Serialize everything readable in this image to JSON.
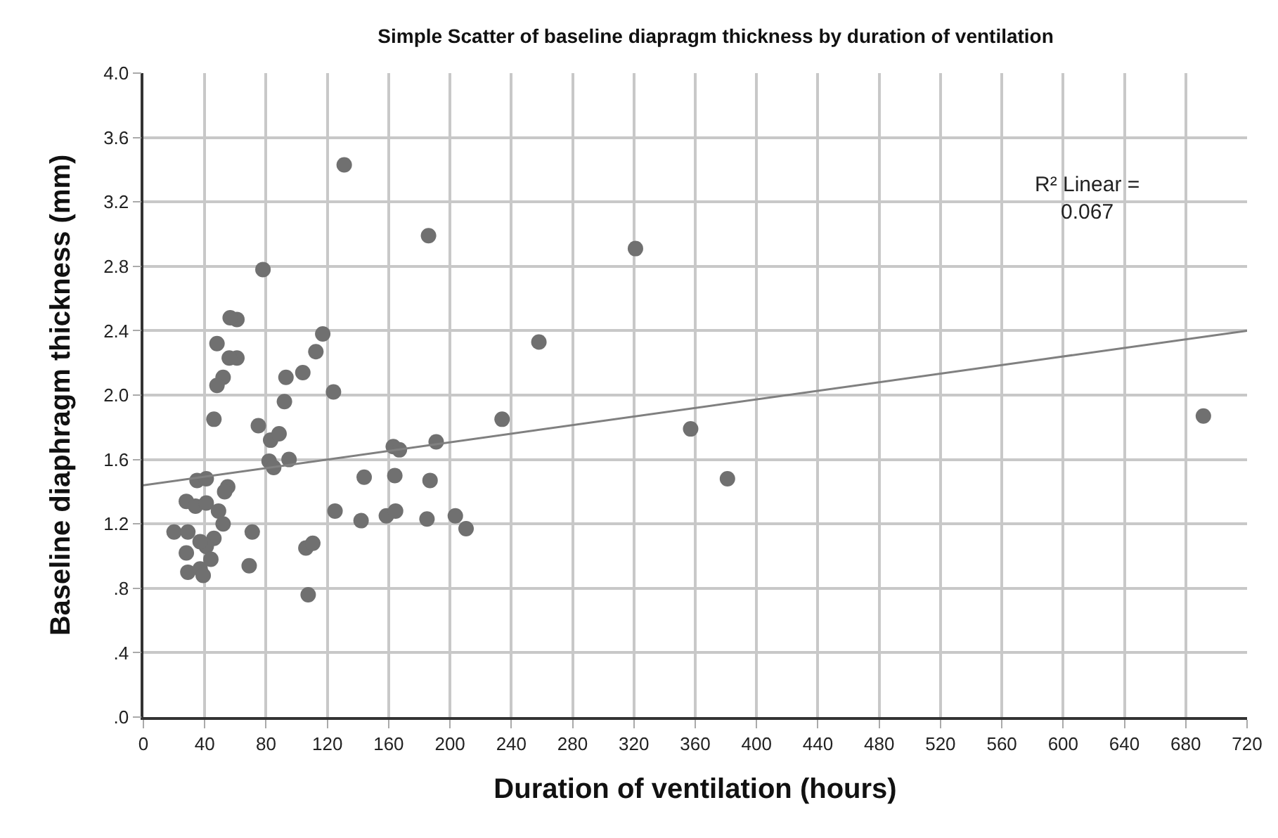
{
  "chart_data": {
    "type": "scatter",
    "title": "Simple Scatter of baseline diapragm thickness by duration of ventilation",
    "xlabel": "Duration of ventilation (hours)",
    "ylabel": "Baseline diaphragm thickness (mm)",
    "xlim": [
      0,
      720
    ],
    "xticks": [
      0,
      40,
      80,
      120,
      160,
      200,
      240,
      280,
      320,
      360,
      400,
      440,
      480,
      520,
      560,
      600,
      640,
      680,
      720
    ],
    "ylim": [
      0,
      4
    ],
    "yticks": [
      {
        "value": 0,
        "label": ".0"
      },
      {
        "value": 0.4,
        "label": ".4"
      },
      {
        "value": 0.8,
        "label": ".8"
      },
      {
        "value": 1.2,
        "label": "1.2"
      },
      {
        "value": 1.6,
        "label": "1.6"
      },
      {
        "value": 2,
        "label": "2.0"
      },
      {
        "value": 2.4,
        "label": "2.4"
      },
      {
        "value": 2.8,
        "label": "2.8"
      },
      {
        "value": 3.2,
        "label": "3.2"
      },
      {
        "value": 3.6,
        "label": "3.6"
      },
      {
        "value": 4,
        "label": "4.0"
      }
    ],
    "grid": true,
    "annotations": [
      "R² Linear =\n0.067"
    ],
    "series": [
      {
        "marker": "circle",
        "color": "#707070",
        "x": [
          131,
          186,
          321,
          78,
          61,
          61,
          117,
          112.5,
          93,
          104,
          92,
          124,
          258,
          234,
          75,
          83,
          88.5,
          82,
          85,
          95,
          163,
          167,
          191,
          144,
          164,
          187,
          125,
          142,
          158.5,
          164.5,
          185,
          203.5,
          210.5,
          71,
          106,
          110.5,
          69,
          107.5,
          357,
          381,
          691.5,
          56.6,
          48,
          56,
          52,
          48,
          46,
          35,
          41,
          55,
          53,
          28,
          34,
          41,
          49,
          52,
          20,
          29,
          46,
          41,
          37,
          28,
          44,
          29,
          37,
          39
        ],
        "values": [
          3.43,
          2.99,
          2.91,
          2.78,
          2.47,
          2.23,
          2.38,
          2.27,
          2.11,
          2.14,
          1.96,
          2.02,
          2.33,
          1.85,
          1.81,
          1.72,
          1.76,
          1.59,
          1.55,
          1.6,
          1.68,
          1.66,
          1.71,
          1.49,
          1.5,
          1.47,
          1.28,
          1.22,
          1.25,
          1.28,
          1.23,
          1.25,
          1.17,
          1.15,
          1.05,
          1.08,
          0.94,
          0.76,
          1.79,
          1.48,
          1.87,
          2.48,
          2.32,
          2.23,
          2.11,
          2.06,
          1.85,
          1.47,
          1.48,
          1.43,
          1.4,
          1.34,
          1.31,
          1.33,
          1.28,
          1.2,
          1.15,
          1.15,
          1.11,
          1.06,
          1.09,
          1.02,
          0.98,
          0.9,
          0.92,
          0.88
        ]
      },
      {
        "type": "line",
        "color": "#808080",
        "x": [
          0,
          720
        ],
        "values": [
          1.44,
          2.4
        ]
      }
    ]
  }
}
